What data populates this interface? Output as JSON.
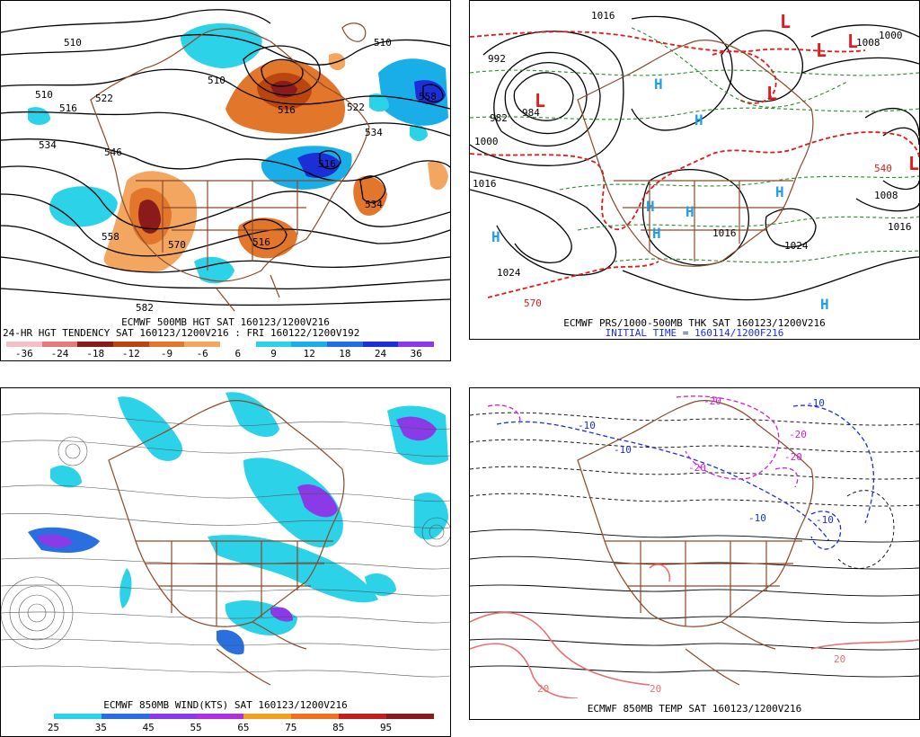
{
  "panels": {
    "p1": {
      "caption1": "ECMWF 500MB HGT SAT 160123/1200V216",
      "caption2": "24-HR HGT TENDENCY SAT 160123/1200V216 : FRI 160122/1200V192",
      "legend_ticks": [
        "-36",
        "-24",
        "-18",
        "-12",
        "-9",
        "-6",
        "6",
        "9",
        "12",
        "18",
        "24",
        "36"
      ],
      "legend_colors": [
        "#f4c0c8",
        "#e67a7a",
        "#8b1a1a",
        "#b8460e",
        "#e2762a",
        "#f2a660",
        "#ffffff",
        "#2bd2e8",
        "#19aee8",
        "#1f6fe0",
        "#1a2fd6",
        "#8a3ae6"
      ],
      "contour_labels": [
        "510",
        "510",
        "510",
        "516",
        "522",
        "534",
        "546",
        "558",
        "570",
        "582",
        "522",
        "534",
        "510",
        "516",
        "516",
        "534",
        "516",
        "558"
      ]
    },
    "p2": {
      "caption1": "ECMWF PRS/1000-500MB THK SAT 160123/1200V216",
      "caption2": "INITIAL TIME = 160114/1200F216",
      "pressure_labels": [
        "1016",
        "992",
        "984",
        "982",
        "1000",
        "1016",
        "1024",
        "1008",
        "1016",
        "1024",
        "1016",
        "1008",
        "1000"
      ],
      "thickness_labels": [
        "570",
        "540"
      ],
      "high_symbol": "H",
      "low_symbol": "L"
    },
    "p3": {
      "caption1": "ECMWF 850MB WIND(KTS) SAT 160123/1200V216",
      "legend_ticks": [
        "25",
        "35",
        "45",
        "55",
        "65",
        "75",
        "85",
        "95"
      ],
      "legend_colors": [
        "#ffffff",
        "#2bd2e8",
        "#2a6fe0",
        "#8a3ae6",
        "#b030e0",
        "#f2a020",
        "#f07020",
        "#c02020",
        "#8b1a1a"
      ]
    },
    "p4": {
      "caption1": "ECMWF 850MB TEMP SAT 160123/1200V216",
      "temp_labels": [
        "-10",
        "-10",
        "-20",
        "-20",
        "-10",
        "-10",
        "20",
        "20",
        "-20",
        "-10",
        "-20",
        "20"
      ]
    }
  }
}
